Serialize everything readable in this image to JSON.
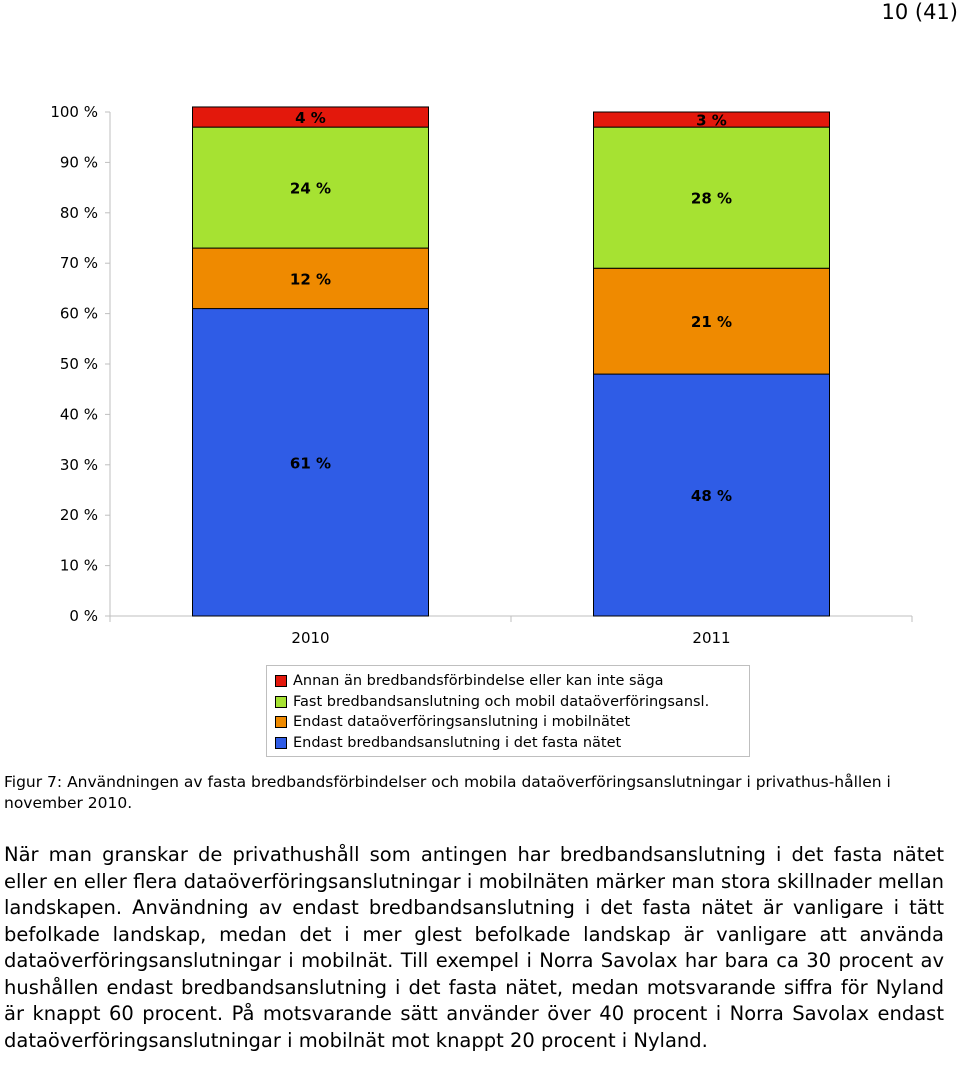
{
  "page": {
    "number": "10 (41)"
  },
  "chart_data": {
    "type": "bar",
    "stacked": true,
    "categories": [
      "2010",
      "2011"
    ],
    "ylim": [
      0,
      100
    ],
    "yticks": [
      0,
      10,
      20,
      30,
      40,
      50,
      60,
      70,
      80,
      90,
      100
    ],
    "ytick_labels": [
      "0 %",
      "10 %",
      "20 %",
      "30 %",
      "40 %",
      "50 %",
      "60 %",
      "70 %",
      "80 %",
      "90 %",
      "100 %"
    ],
    "grid": false,
    "legend_position": "bottom",
    "series": [
      {
        "name": "Endast bredbandsanslutning i det fasta nätet",
        "values": [
          61,
          48
        ],
        "labels": [
          "61 %",
          "48 %"
        ],
        "color": "#2f5ce6"
      },
      {
        "name": "Endast dataöverföringsanslutning i mobilnätet",
        "values": [
          12,
          21
        ],
        "labels": [
          "12 %",
          "21 %"
        ],
        "color": "#ef8a00"
      },
      {
        "name": "Fast bredbandsanslutning och mobil dataöverföringsansl.",
        "values": [
          24,
          28
        ],
        "labels": [
          "24 %",
          "28 %"
        ],
        "color": "#a6e232"
      },
      {
        "name": "Annan än bredbandsförbindelse eller kan inte säga",
        "values": [
          4,
          3
        ],
        "labels": [
          "4 %",
          "3 %"
        ],
        "color": "#e3180c"
      }
    ],
    "legend": [
      {
        "label": "Annan än bredbandsförbindelse eller kan inte säga",
        "color": "#e3180c"
      },
      {
        "label": "Fast bredbandsanslutning och mobil dataöverföringsansl.",
        "color": "#a6e232"
      },
      {
        "label": "Endast dataöverföringsanslutning i mobilnätet",
        "color": "#ef8a00"
      },
      {
        "label": "Endast bredbandsanslutning i det fasta nätet",
        "color": "#2f5ce6"
      }
    ]
  },
  "caption": "Figur 7: Användningen av fasta bredbandsförbindelser och mobila dataöverföringsanslutningar i privathus-hållen i november 2010.",
  "body_text": "När man granskar de privathushåll som antingen har bredbandsanslutning i det fasta nätet eller en eller flera dataöverföringsanslutningar i mobilnäten märker man stora skillnader mellan landskapen. Användning av endast bredbandsanslutning i det fasta nätet är vanligare i tätt befolkade landskap, medan det i mer glest befolkade landskap är vanligare att använda dataöverföringsanslutningar i mobilnät. Till exempel i Norra Savolax har bara ca 30 procent av hushållen endast bredbandsanslutning i det fasta nätet, medan motsvarande siffra för Nyland är knappt 60 procent. På motsvarande sätt använder över 40 procent i Norra Savolax endast dataöverföringsanslutningar i mobilnät mot knappt 20 procent i Nyland."
}
